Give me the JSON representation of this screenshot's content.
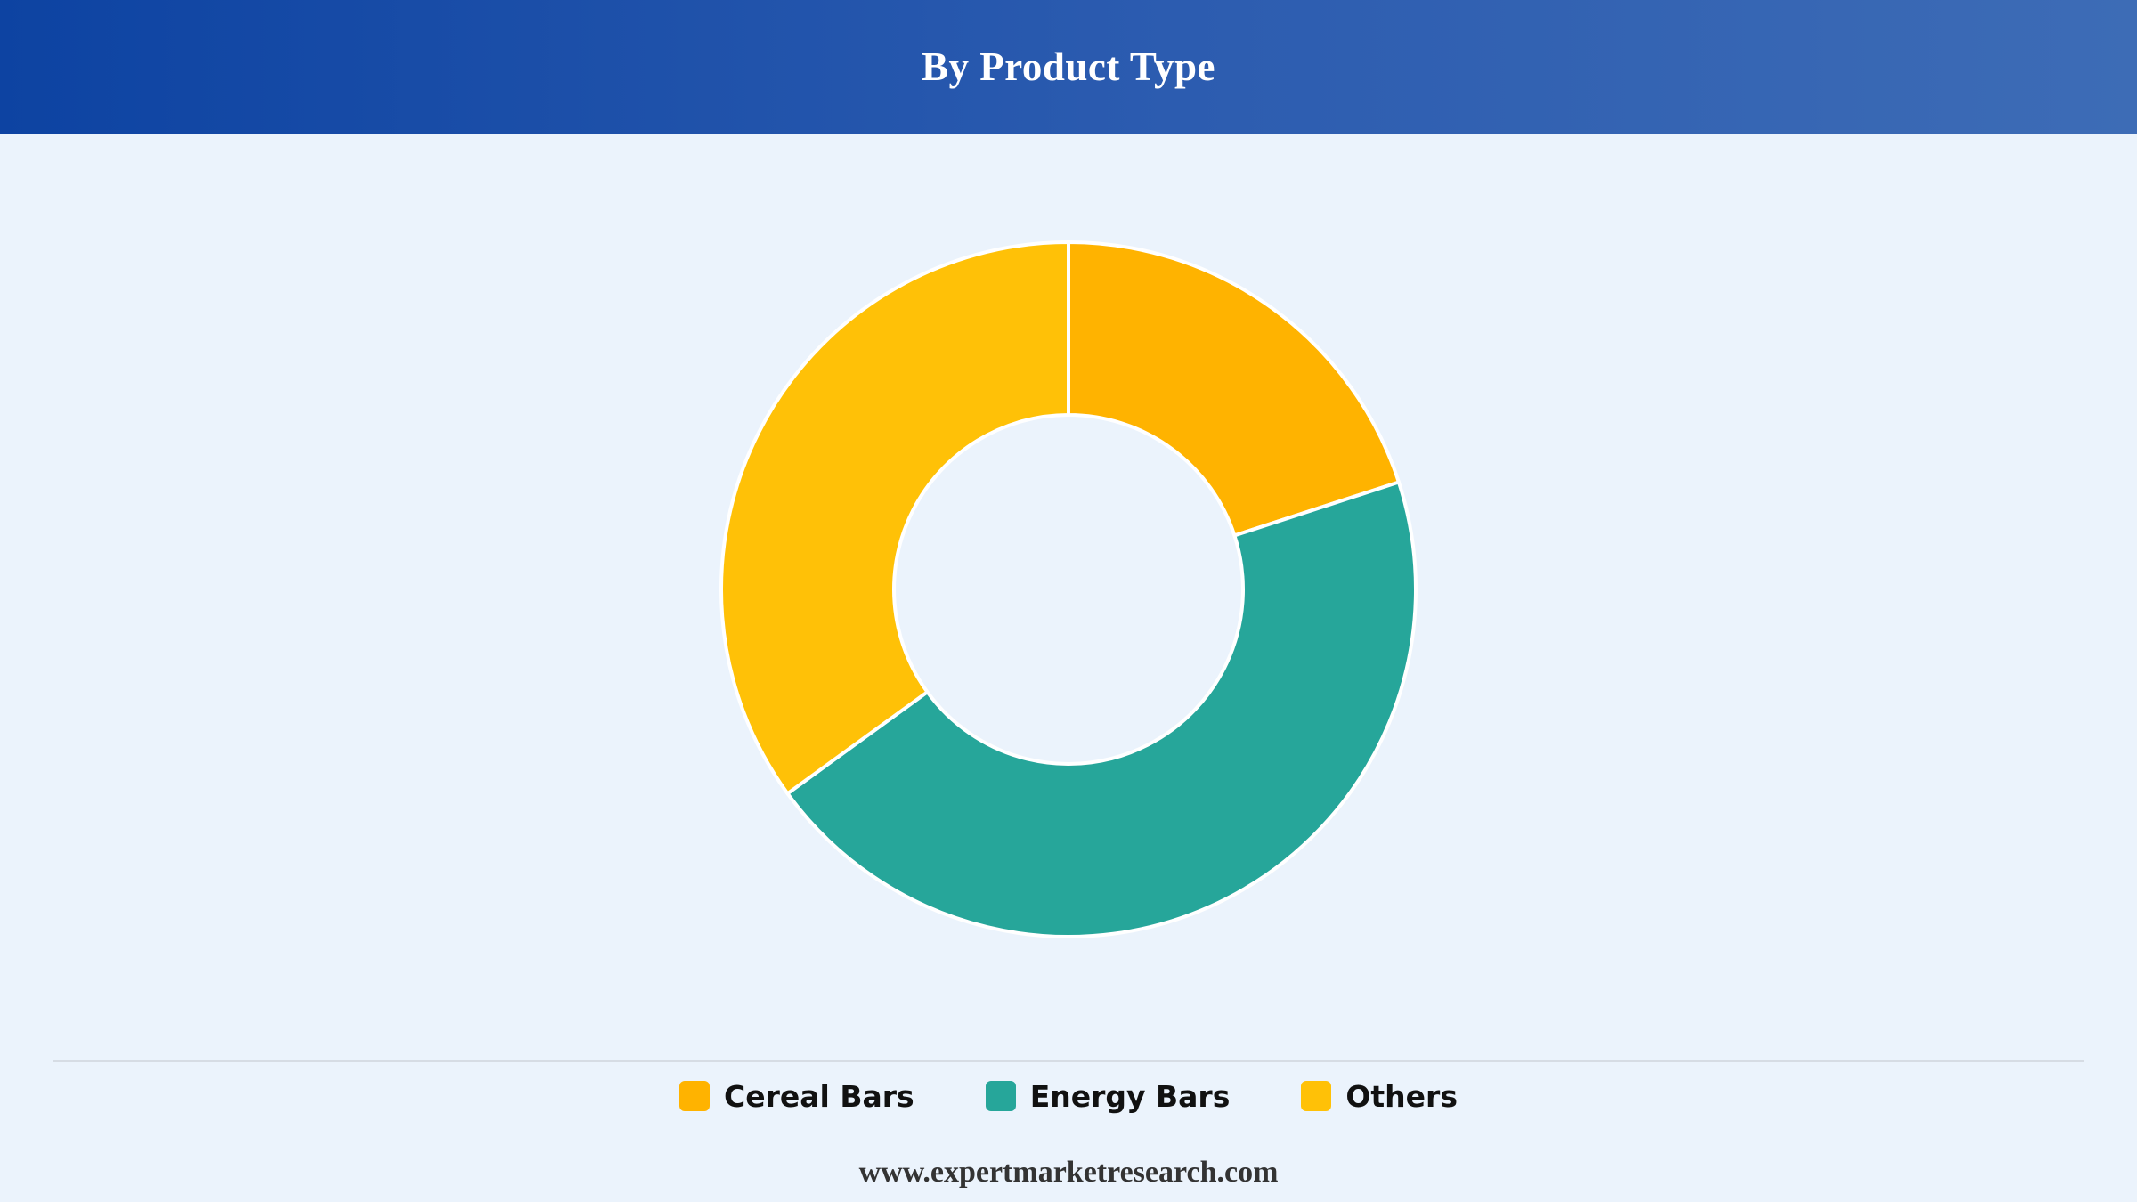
{
  "header": {
    "title": "By Product Type"
  },
  "chart_data": {
    "type": "pie",
    "donut": true,
    "categories": [
      "Cereal Bars",
      "Energy Bars",
      "Others"
    ],
    "values": [
      20,
      45,
      35
    ],
    "colors": [
      "#ffb300",
      "#26a69a",
      "#ffc107"
    ],
    "legend_position": "bottom"
  },
  "legend": {
    "items": [
      {
        "label": "Cereal Bars",
        "color": "#ffb300"
      },
      {
        "label": "Energy Bars",
        "color": "#26a69a"
      },
      {
        "label": "Others",
        "color": "#ffc107"
      }
    ]
  },
  "footer": {
    "text": "www.expertmarketresearch.com"
  }
}
